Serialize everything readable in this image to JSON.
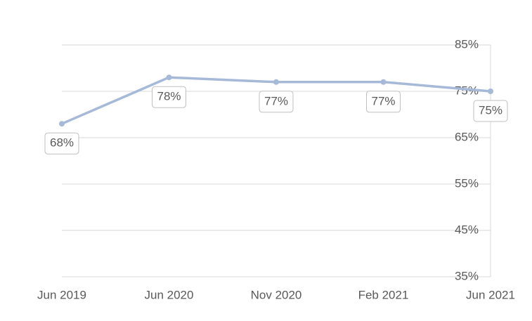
{
  "chart_data": {
    "type": "line",
    "categories": [
      "Jun 2019",
      "Jun 2020",
      "Nov 2020",
      "Feb 2021",
      "Jun 2021"
    ],
    "series": [
      {
        "color": "#a6b9d9",
        "values": [
          68,
          78,
          77,
          77,
          75
        ],
        "value_labels": [
          "68%",
          "78%",
          "77%",
          "77%",
          "75%"
        ]
      }
    ],
    "ylim": [
      35,
      85
    ],
    "yticks": [
      {
        "value": 35,
        "label": "35%"
      },
      {
        "value": 45,
        "label": "45%"
      },
      {
        "value": 55,
        "label": "55%"
      },
      {
        "value": 65,
        "label": "65%"
      },
      {
        "value": 75,
        "label": "75%"
      },
      {
        "value": 85,
        "label": "85%"
      }
    ],
    "grid": true
  }
}
